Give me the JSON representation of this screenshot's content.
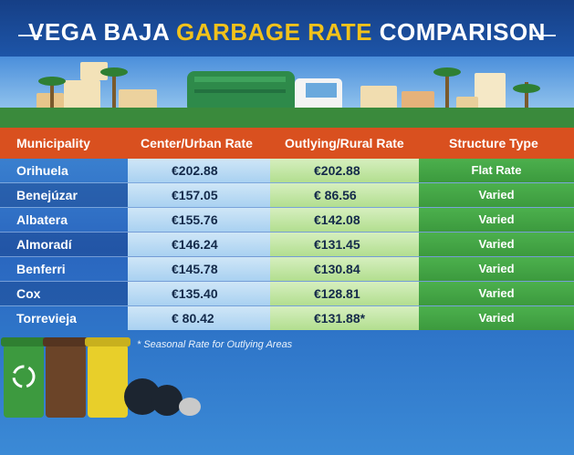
{
  "title": {
    "part1": "VEGA BAJA",
    "part2": "GARBAGE RATE",
    "part3": "COMPARISON"
  },
  "columns": [
    "Municipality",
    "Center/Urban Rate",
    "Outlying/Rural Rate",
    "Structure Type"
  ],
  "rows": [
    {
      "municipality": "Orihuela",
      "urban": "€202.88",
      "rural": "€202.88",
      "structure": "Flat Rate"
    },
    {
      "municipality": "Benejúzar",
      "urban": "€157.05",
      "rural": "€ 86.56",
      "structure": "Varied"
    },
    {
      "municipality": "Albatera",
      "urban": "€155.76",
      "rural": "€142.08",
      "structure": "Varied"
    },
    {
      "municipality": "Almoradí",
      "urban": "€146.24",
      "rural": "€131.45",
      "structure": "Varied"
    },
    {
      "municipality": "Benferri",
      "urban": "€145.78",
      "rural": "€130.84",
      "structure": "Varied"
    },
    {
      "municipality": "Cox",
      "urban": "€135.40",
      "rural": "€128.81",
      "structure": "Varied"
    },
    {
      "municipality": "Torrevieja",
      "urban": "€ 80.42",
      "rural": "€131.88*",
      "structure": "Varied"
    }
  ],
  "footnote": "* Seasonal Rate for Outlying Areas",
  "colors": {
    "header": "#d9501f",
    "accent_title": "#f2c21a",
    "structure_cell": "#46a847"
  }
}
